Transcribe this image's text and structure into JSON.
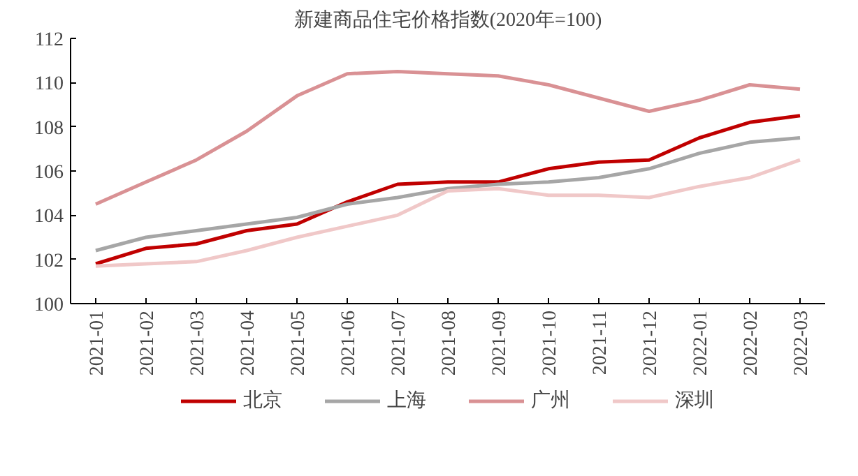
{
  "chart_data": {
    "type": "line",
    "title": "新建商品住宅价格指数(2020年=100)",
    "categories": [
      "2021-01",
      "2021-02",
      "2021-03",
      "2021-04",
      "2021-05",
      "2021-06",
      "2021-07",
      "2021-08",
      "2021-09",
      "2021-10",
      "2021-11",
      "2021-12",
      "2022-01",
      "2022-02",
      "2022-03"
    ],
    "series": [
      {
        "name": "北京",
        "color": "#c00000",
        "values": [
          101.8,
          102.5,
          102.7,
          103.3,
          103.6,
          104.6,
          105.4,
          105.5,
          105.5,
          106.1,
          106.4,
          106.5,
          107.5,
          108.2,
          108.5
        ]
      },
      {
        "name": "上海",
        "color": "#a6a6a6",
        "values": [
          102.4,
          103.0,
          103.3,
          103.6,
          103.9,
          104.5,
          104.8,
          105.2,
          105.4,
          105.5,
          105.7,
          106.1,
          106.8,
          107.3,
          107.5
        ]
      },
      {
        "name": "广州",
        "color": "#d99194",
        "values": [
          104.5,
          105.5,
          106.5,
          107.8,
          109.4,
          110.4,
          110.5,
          110.4,
          110.3,
          109.9,
          109.3,
          108.7,
          109.2,
          109.9,
          109.7
        ]
      },
      {
        "name": "深圳",
        "color": "#f0c8c8",
        "values": [
          101.7,
          101.8,
          101.9,
          102.4,
          103.0,
          103.5,
          104.0,
          105.1,
          105.2,
          104.9,
          104.9,
          104.8,
          105.3,
          105.7,
          106.5
        ]
      }
    ],
    "ylim": [
      100,
      112
    ],
    "yticks": [
      100,
      102,
      104,
      106,
      108,
      110,
      112
    ],
    "grid": false,
    "legend": "bottom",
    "line_style": "solid",
    "marker": "none"
  }
}
